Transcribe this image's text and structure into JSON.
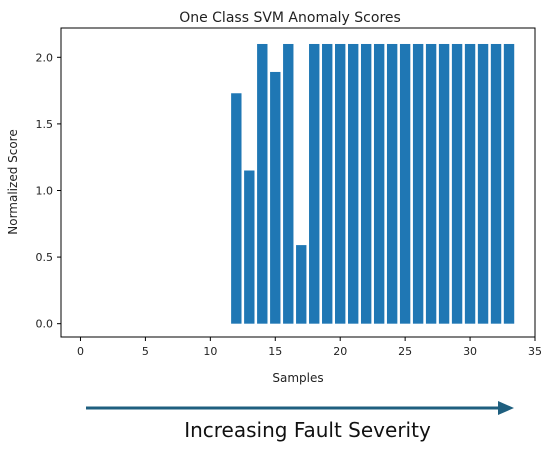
{
  "chart_data": {
    "type": "bar",
    "title": "One Class SVM Anomaly Scores",
    "xlabel": "Samples",
    "ylabel": "Normalized Score",
    "xlim": [
      -1.5,
      35
    ],
    "ylim": [
      -0.1,
      2.22
    ],
    "xticks": [
      0,
      5,
      10,
      15,
      20,
      25,
      30,
      35
    ],
    "yticks": [
      0.0,
      0.5,
      1.0,
      1.5,
      2.0
    ],
    "ytick_labels": [
      "0.0",
      "0.5",
      "1.0",
      "1.5",
      "2.0"
    ],
    "x": [
      12,
      13,
      14,
      15,
      16,
      17,
      18,
      19,
      20,
      21,
      22,
      23,
      24,
      25,
      26,
      27,
      28,
      29,
      30,
      31,
      32,
      33
    ],
    "values": [
      1.73,
      1.15,
      2.1,
      1.89,
      2.1,
      0.59,
      2.1,
      2.1,
      2.1,
      2.1,
      2.1,
      2.1,
      2.1,
      2.1,
      2.1,
      2.1,
      2.1,
      2.1,
      2.1,
      2.1,
      2.1,
      2.1
    ],
    "bar_color": "#1f77b4",
    "grid": false,
    "legend": "none"
  },
  "annotation": {
    "caption": "Increasing Fault Severity",
    "arrow_color": "#1f5f7f"
  }
}
